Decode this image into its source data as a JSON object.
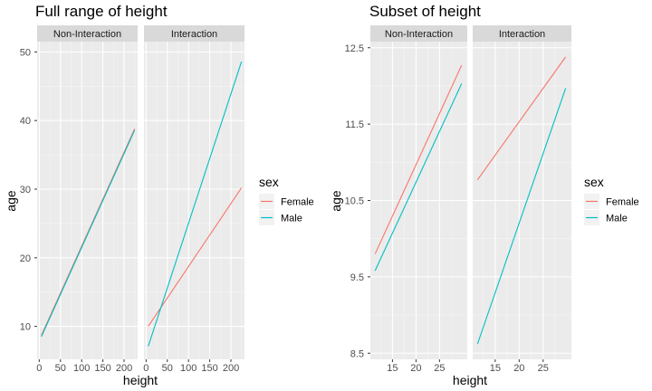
{
  "chart_data": [
    {
      "type": "line",
      "title": "Full range of height",
      "xlabel": "height",
      "ylabel": "age",
      "xlim": [
        -5,
        232
      ],
      "ylim": [
        5.2,
        51.5
      ],
      "xticks": [
        0,
        50,
        100,
        150,
        200
      ],
      "xtick_labels": [
        "0",
        "50",
        "100",
        "150",
        "200"
      ],
      "yticks": [
        10,
        20,
        30,
        40,
        50
      ],
      "ytick_labels": [
        "10",
        "20",
        "30",
        "40",
        "50"
      ],
      "grid": true,
      "facets": [
        "Non-Interaction",
        "Interaction"
      ],
      "series": [
        {
          "name": "Female",
          "color": "#F8766D",
          "facet": "Non-Interaction",
          "x": [
            5,
            225
          ],
          "y": [
            8.7,
            38.8
          ]
        },
        {
          "name": "Male",
          "color": "#00BFC4",
          "facet": "Non-Interaction",
          "x": [
            5,
            225
          ],
          "y": [
            8.5,
            38.6
          ]
        },
        {
          "name": "Female",
          "color": "#F8766D",
          "facet": "Interaction",
          "x": [
            5,
            225
          ],
          "y": [
            10.0,
            30.2
          ]
        },
        {
          "name": "Male",
          "color": "#00BFC4",
          "facet": "Interaction",
          "x": [
            5,
            225
          ],
          "y": [
            7.1,
            48.6
          ]
        }
      ],
      "legend": {
        "title": "sex",
        "position": "right",
        "entries": [
          {
            "label": "Female",
            "color": "#F8766D"
          },
          {
            "label": "Male",
            "color": "#00BFC4"
          }
        ]
      }
    },
    {
      "type": "line",
      "title": "Subset of height",
      "xlabel": "height",
      "ylabel": "age",
      "xlim": [
        10.3,
        30.9
      ],
      "ylim": [
        8.42,
        12.58
      ],
      "xticks": [
        15,
        20,
        25
      ],
      "xtick_labels": [
        "15",
        "20",
        "25"
      ],
      "yticks": [
        8.5,
        9.5,
        10.5,
        11.5,
        12.5
      ],
      "ytick_labels": [
        "8.5",
        "9.5",
        "10.5",
        "11.5",
        "12.5"
      ],
      "grid": true,
      "facets": [
        "Non-Interaction",
        "Interaction"
      ],
      "series": [
        {
          "name": "Female",
          "color": "#F8766D",
          "facet": "Non-Interaction",
          "x": [
            11.3,
            29.7
          ],
          "y": [
            9.8,
            12.27
          ]
        },
        {
          "name": "Male",
          "color": "#00BFC4",
          "facet": "Non-Interaction",
          "x": [
            11.3,
            29.7
          ],
          "y": [
            9.58,
            12.03
          ]
        },
        {
          "name": "Female",
          "color": "#F8766D",
          "facet": "Interaction",
          "x": [
            11.3,
            29.7
          ],
          "y": [
            10.77,
            12.38
          ]
        },
        {
          "name": "Male",
          "color": "#00BFC4",
          "facet": "Interaction",
          "x": [
            11.3,
            29.7
          ],
          "y": [
            8.62,
            11.97
          ]
        }
      ],
      "legend": {
        "title": "sex",
        "position": "right",
        "entries": [
          {
            "label": "Female",
            "color": "#F8766D"
          },
          {
            "label": "Male",
            "color": "#00BFC4"
          }
        ]
      }
    }
  ]
}
